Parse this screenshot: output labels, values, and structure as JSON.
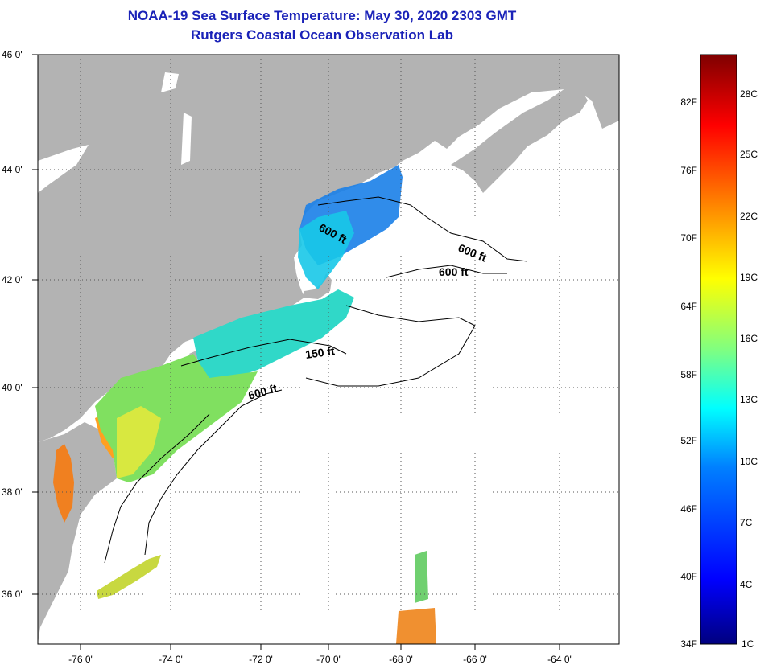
{
  "title_line1": "NOAA-19 Sea Surface Temperature:  May 30, 2020 2303 GMT",
  "title_line2": "Rutgers Coastal Ocean Observation Lab",
  "map": {
    "lat_labels": [
      "46 0'",
      "44 0'",
      "42 0'",
      "40 0'",
      "38 0'",
      "36 0'"
    ],
    "lon_labels": [
      "-76 0'",
      "-74 0'",
      "-72 0'",
      "-70 0'",
      "-68 0'",
      "-66 0'",
      "-64 0'"
    ],
    "depth_labels": [
      "600 ft",
      "600 ft",
      "600 ft",
      "150 ft",
      "600 ft"
    ],
    "colors": {
      "land": "#b3b3b3",
      "ocean": "#ffffff",
      "grid": "#555555"
    }
  },
  "colorbar": {
    "fahrenheit_labels": [
      "82F",
      "76F",
      "70F",
      "64F",
      "58F",
      "52F",
      "46F",
      "40F",
      "34F"
    ],
    "celsius_labels": [
      "28C",
      "25C",
      "22C",
      "19C",
      "16C",
      "13C",
      "10C",
      "7C",
      "4C",
      "1C"
    ],
    "colors": [
      "#00007f",
      "#0000ff",
      "#0080ff",
      "#00ffff",
      "#80ff80",
      "#ffff00",
      "#ff8000",
      "#ff0000",
      "#7f0000"
    ]
  }
}
